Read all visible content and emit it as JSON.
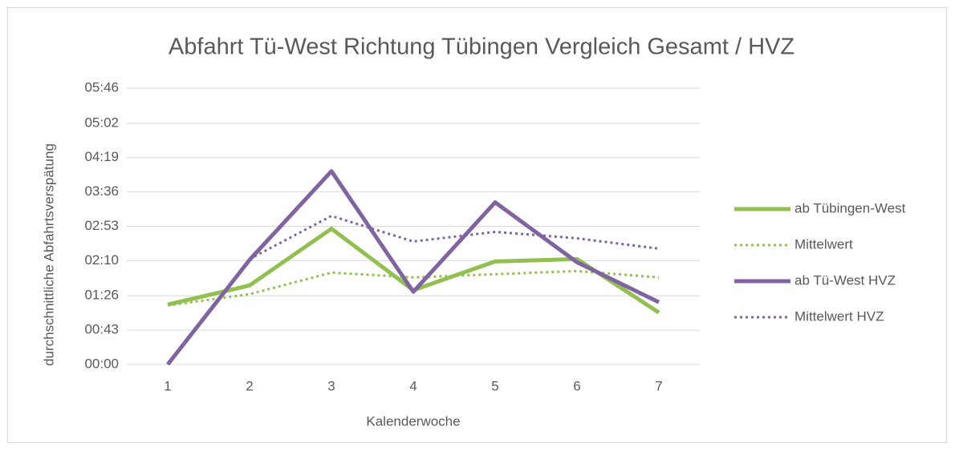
{
  "chart_data": {
    "type": "line",
    "title": "Abfahrt Tü-West Richtung Tübingen Vergleich Gesamt / HVZ",
    "x_label": "Kalenderwoche",
    "y_label": "durchschnittliche Abfahrtsverspätung",
    "categories": [
      "1",
      "2",
      "3",
      "4",
      "5",
      "6",
      "7"
    ],
    "series": [
      {
        "name": "ab Tübingen-West",
        "color": "#92c050",
        "style": "solid",
        "values": [
          75,
          99,
          170,
          93,
          129,
          132,
          65
        ]
      },
      {
        "name": "Mittelwert",
        "color": "#92c050",
        "style": "dotted",
        "values": [
          74,
          88,
          115,
          109,
          113,
          117,
          109
        ]
      },
      {
        "name": "ab Tü-West HVZ",
        "color": "#8064a2",
        "style": "solid",
        "values": [
          0,
          131,
          242,
          91,
          203,
          128,
          78
        ]
      },
      {
        "name": "Mittelwert HVZ",
        "color": "#8064a2",
        "style": "dotted",
        "values": [
          null,
          132,
          186,
          154,
          166,
          158,
          145
        ]
      }
    ],
    "ylim": [
      0,
      346
    ],
    "yticks": [
      {
        "value": 0,
        "label": "00:00"
      },
      {
        "value": 43,
        "label": "00:43"
      },
      {
        "value": 86,
        "label": "01:26"
      },
      {
        "value": 130,
        "label": "02:10"
      },
      {
        "value": 173,
        "label": "02:53"
      },
      {
        "value": 216,
        "label": "03:36"
      },
      {
        "value": 259,
        "label": "04:19"
      },
      {
        "value": 302,
        "label": "05:02"
      },
      {
        "value": 346,
        "label": "05:46"
      }
    ],
    "grid": true,
    "legend": "right"
  }
}
